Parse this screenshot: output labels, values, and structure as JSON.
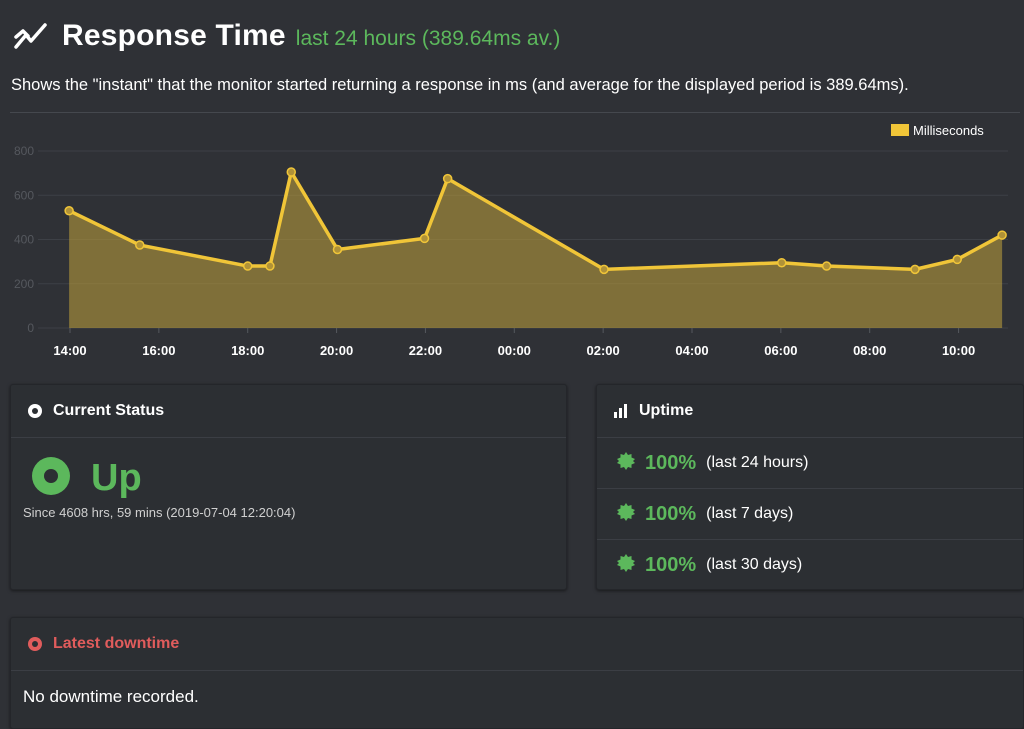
{
  "header": {
    "icon": "line-chart-icon",
    "title": "Response Time",
    "subtitle": "last 24 hours (389.64ms av.)",
    "description": "Shows the \"instant\" that the monitor started returning a response in ms (and average for the displayed period is 389.64ms)."
  },
  "chart_data": {
    "type": "area",
    "legend": [
      "Milliseconds"
    ],
    "legend_position": "top-right",
    "series": [
      {
        "name": "Milliseconds",
        "color": "#f0c538",
        "x": [
          13.98,
          15.57,
          18.0,
          18.5,
          18.98,
          20.02,
          21.98,
          22.5,
          2.02,
          6.02,
          7.03,
          9.02,
          9.97,
          10.98
        ],
        "y": [
          530,
          375,
          280,
          280,
          705,
          355,
          405,
          675,
          265,
          295,
          280,
          265,
          310,
          420
        ]
      }
    ],
    "x_ticks": [
      "14:00",
      "16:00",
      "18:00",
      "20:00",
      "22:00",
      "00:00",
      "02:00",
      "04:00",
      "06:00",
      "08:00",
      "10:00"
    ],
    "y_ticks": [
      "0",
      "200",
      "400",
      "600",
      "800"
    ],
    "ylim": [
      0,
      800
    ],
    "grid": true
  },
  "status": {
    "header_icon": "radio-icon",
    "title": "Current Status",
    "state": "Up",
    "since": "Since 4608 hrs, 59 mins (2019-07-04 12:20:04)"
  },
  "uptime": {
    "header_icon": "bar-chart-icon",
    "title": "Uptime",
    "items": [
      {
        "percent": "100%",
        "period": "(last 24 hours)"
      },
      {
        "percent": "100%",
        "period": "(last 7 days)"
      },
      {
        "percent": "100%",
        "period": "(last 30 days)"
      }
    ]
  },
  "downtime": {
    "header_icon": "alert-circle-icon",
    "title": "Latest downtime",
    "message": "No downtime recorded."
  },
  "colors": {
    "background": "#2f3136",
    "green": "#5cb85c",
    "red": "#e05c5c",
    "accent": "#f0c538"
  }
}
